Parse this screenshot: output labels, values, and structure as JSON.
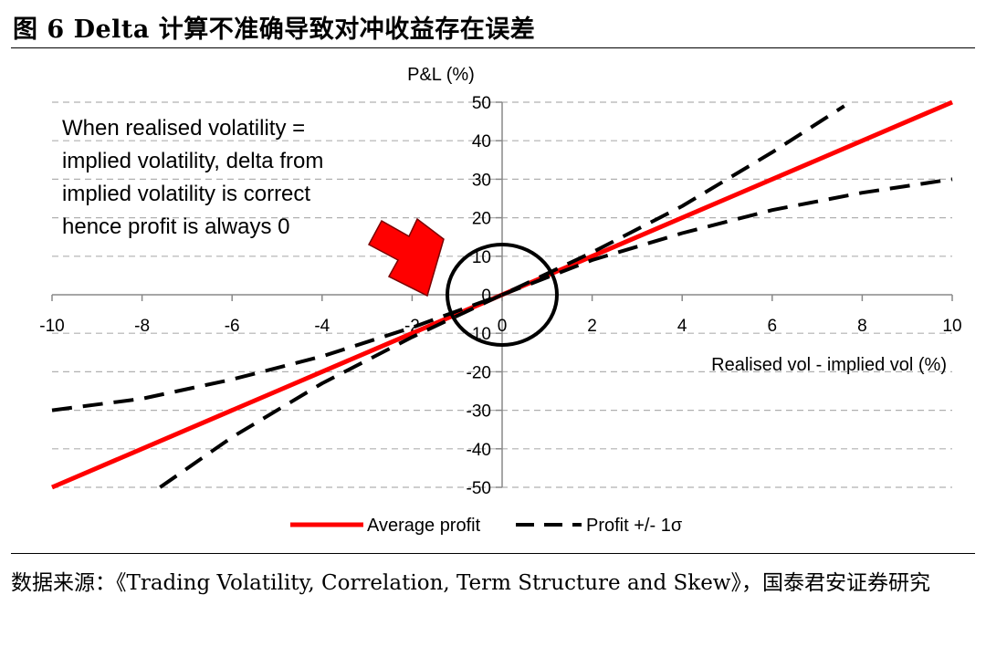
{
  "figure": {
    "title": "图 6 Delta 计算不准确导致对冲收益存在误差",
    "source": "数据来源：《Trading Volatility, Correlation, Term Structure and Skew》，国泰君安证券研究"
  },
  "chart_data": {
    "type": "line",
    "ylabel": "P&L (%)",
    "xlabel": "Realised vol - implied vol (%)",
    "xlim": [
      -10,
      10
    ],
    "ylim": [
      -50,
      50
    ],
    "x_ticks": [
      -10,
      -8,
      -6,
      -4,
      -2,
      0,
      2,
      4,
      6,
      8,
      10
    ],
    "x_tick_labels": [
      "-10",
      "-8",
      "-6",
      "-4",
      "-2",
      "0",
      "2",
      "4",
      "6",
      "8",
      "10"
    ],
    "y_ticks": [
      50,
      40,
      30,
      20,
      10,
      0,
      -10,
      -20,
      -30,
      -40,
      -50
    ],
    "y_tick_labels": [
      "50",
      "40",
      "30",
      "20",
      "10",
      "0",
      "-10",
      "-20",
      "-30",
      "-40",
      "-50"
    ],
    "grid": "horizontal dashed",
    "legend_position": "bottom-center",
    "series": [
      {
        "name": "Average profit",
        "style": "solid",
        "color": "#ff0000",
        "points": [
          [
            -10,
            -50
          ],
          [
            -5,
            -25
          ],
          [
            0,
            0
          ],
          [
            5,
            25
          ],
          [
            10,
            50
          ]
        ]
      },
      {
        "name": "Profit +/- 1σ",
        "style": "dashed",
        "color": "#000000",
        "points": [
          [
            -7.6,
            -50
          ],
          [
            -6,
            -37
          ],
          [
            -4,
            -23
          ],
          [
            -2,
            -11
          ],
          [
            0,
            0
          ],
          [
            2,
            11
          ],
          [
            4,
            23
          ],
          [
            6,
            37
          ],
          [
            7.6,
            49
          ]
        ]
      },
      {
        "name": "Profit +/- 1σ (lower)",
        "style": "dashed",
        "color": "#000000",
        "legend": false,
        "points": [
          [
            -10,
            -30
          ],
          [
            -8,
            -27
          ],
          [
            -6,
            -22
          ],
          [
            -4,
            -16
          ],
          [
            -2,
            -8.5
          ],
          [
            0,
            0
          ],
          [
            2,
            9
          ],
          [
            4,
            16
          ],
          [
            6,
            22
          ],
          [
            8,
            26.5
          ],
          [
            10,
            30
          ]
        ]
      }
    ],
    "annotations": {
      "text_lines": [
        "When realised volatility =",
        "implied volatility, delta from",
        "implied volatility is correct",
        "hence profit is always 0"
      ],
      "arrow_color": "#ff0000",
      "circle_center": [
        0,
        0
      ]
    }
  }
}
